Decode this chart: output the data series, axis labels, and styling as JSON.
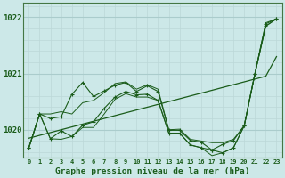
{
  "title": "Graphe pression niveau de la mer (hPa)",
  "background_color": "#cce8e8",
  "grid_color_major": "#aacccc",
  "grid_color_minor": "#bbd8d8",
  "line_color": "#1a5c1a",
  "x_hours": [
    0,
    1,
    2,
    3,
    4,
    5,
    6,
    7,
    8,
    9,
    10,
    11,
    12,
    13,
    14,
    15,
    16,
    17,
    18,
    19,
    20,
    21,
    22,
    23
  ],
  "line_upper": [
    1019.68,
    1020.28,
    1020.28,
    1020.32,
    1020.28,
    1020.48,
    1020.52,
    1020.66,
    1020.82,
    1020.85,
    1020.72,
    1020.8,
    1020.72,
    1020.0,
    1020.01,
    1019.83,
    1019.8,
    1019.77,
    1019.77,
    1019.83,
    1020.07,
    1021.0,
    1021.9,
    1021.97
  ],
  "line_lower": [
    1019.68,
    1020.28,
    1019.84,
    1019.83,
    1019.88,
    1020.04,
    1020.04,
    1020.28,
    1020.54,
    1020.64,
    1020.58,
    1020.58,
    1020.52,
    1019.94,
    1019.94,
    1019.73,
    1019.68,
    1019.54,
    1019.59,
    1019.68,
    1020.07,
    1021.0,
    1021.84,
    1021.97
  ],
  "line_mid_upper": [
    1019.68,
    1020.28,
    1020.2,
    1020.23,
    1020.63,
    1020.84,
    1020.59,
    1020.69,
    1020.79,
    1020.84,
    1020.68,
    1020.78,
    1020.68,
    1019.99,
    1019.99,
    1019.81,
    1019.78,
    1019.64,
    1019.74,
    1019.81,
    1020.07,
    1021.0,
    1021.88,
    1021.97
  ],
  "line_mid_lower": [
    1019.68,
    1020.28,
    1019.84,
    1019.98,
    1019.88,
    1020.08,
    1020.14,
    1020.38,
    1020.58,
    1020.68,
    1020.62,
    1020.63,
    1020.52,
    1019.94,
    1019.94,
    1019.73,
    1019.68,
    1019.64,
    1019.59,
    1019.68,
    1020.07,
    1021.0,
    1021.84,
    1021.97
  ],
  "line_trend": [
    1019.85,
    1019.9,
    1019.95,
    1020.0,
    1020.05,
    1020.1,
    1020.15,
    1020.2,
    1020.25,
    1020.3,
    1020.35,
    1020.4,
    1020.45,
    1020.5,
    1020.55,
    1020.6,
    1020.65,
    1020.7,
    1020.75,
    1020.8,
    1020.85,
    1020.9,
    1020.95,
    1021.3
  ],
  "ylim": [
    1019.5,
    1022.25
  ],
  "yticks": [
    1020,
    1021,
    1022
  ],
  "minor_yticks": [
    1019.6,
    1019.8,
    1020.2,
    1020.4,
    1020.6,
    1020.8,
    1021.2,
    1021.4,
    1021.6,
    1021.8,
    1022.2
  ]
}
